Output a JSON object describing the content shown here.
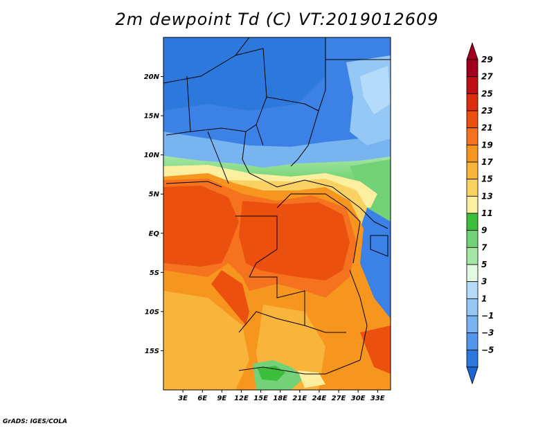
{
  "title": "2m dewpoint Td (C) VT:2019012609",
  "credit": "GrADS: IGES/COLA",
  "map": {
    "lon_range": [
      0,
      35
    ],
    "lat_range": [
      -20,
      25
    ],
    "lat_ticks": [
      {
        "value": 20,
        "label": "20N"
      },
      {
        "value": 15,
        "label": "15N"
      },
      {
        "value": 10,
        "label": "10N"
      },
      {
        "value": 5,
        "label": "5N"
      },
      {
        "value": 0,
        "label": "EQ"
      },
      {
        "value": -5,
        "label": "5S"
      },
      {
        "value": -10,
        "label": "10S"
      },
      {
        "value": -15,
        "label": "15S"
      }
    ],
    "lon_ticks": [
      {
        "value": 3,
        "label": "3E"
      },
      {
        "value": 6,
        "label": "6E"
      },
      {
        "value": 9,
        "label": "9E"
      },
      {
        "value": 12,
        "label": "12E"
      },
      {
        "value": 15,
        "label": "15E"
      },
      {
        "value": 18,
        "label": "18E"
      },
      {
        "value": 21,
        "label": "21E"
      },
      {
        "value": 24,
        "label": "24E"
      },
      {
        "value": 27,
        "label": "27E"
      },
      {
        "value": 30,
        "label": "30E"
      },
      {
        "value": 33,
        "label": "33E"
      }
    ]
  },
  "colorbar": {
    "levels": [
      {
        "label": "29",
        "color": "#a0001e"
      },
      {
        "label": "27",
        "color": "#be0f14"
      },
      {
        "label": "25",
        "color": "#dc2d0f"
      },
      {
        "label": "23",
        "color": "#eb500f"
      },
      {
        "label": "21",
        "color": "#f5731e"
      },
      {
        "label": "19",
        "color": "#f7961e"
      },
      {
        "label": "17",
        "color": "#f9b43c"
      },
      {
        "label": "15",
        "color": "#fad264"
      },
      {
        "label": "13",
        "color": "#fcf0a0"
      },
      {
        "label": "11",
        "color": "#3cbe3c"
      },
      {
        "label": "9",
        "color": "#73d278"
      },
      {
        "label": "7",
        "color": "#a5e6a5"
      },
      {
        "label": "5",
        "color": "#e1fae1"
      },
      {
        "label": "3",
        "color": "#b4dcfa"
      },
      {
        "label": "1",
        "color": "#96c8f5"
      },
      {
        "label": "−1",
        "color": "#78b4f0"
      },
      {
        "label": "−3",
        "color": "#5096eb"
      },
      {
        "label": "−5",
        "color": "#2d78dc"
      }
    ],
    "bottom_color": "#1e64d2"
  }
}
